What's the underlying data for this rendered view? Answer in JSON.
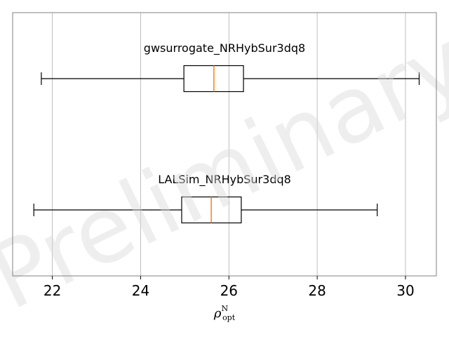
{
  "chart_data": {
    "type": "boxplot",
    "orientation": "horizontal",
    "xlim": [
      21.1,
      30.7
    ],
    "xticks": [
      22,
      24,
      26,
      28,
      30
    ],
    "xtick_labels": [
      "22",
      "24",
      "26",
      "28",
      "30"
    ],
    "xlabel": {
      "base": "ρ",
      "sup": "N",
      "sub": "opt"
    },
    "grid": "vertical",
    "watermark": "Preliminary",
    "series": [
      {
        "name": "gwsurrogate_NRHybSur3dq8",
        "whisker_low": 21.75,
        "q1": 24.98,
        "median": 25.66,
        "q3": 26.33,
        "whisker_high": 30.31
      },
      {
        "name": "LALSim_NRHybSur3dq8",
        "whisker_low": 21.58,
        "q1": 24.93,
        "median": 25.6,
        "q3": 26.28,
        "whisker_high": 29.36
      }
    ],
    "colors": {
      "box": "#000000",
      "median": "#ff7f0e",
      "grid": "#b0b0b0",
      "frame": "#808080"
    }
  }
}
